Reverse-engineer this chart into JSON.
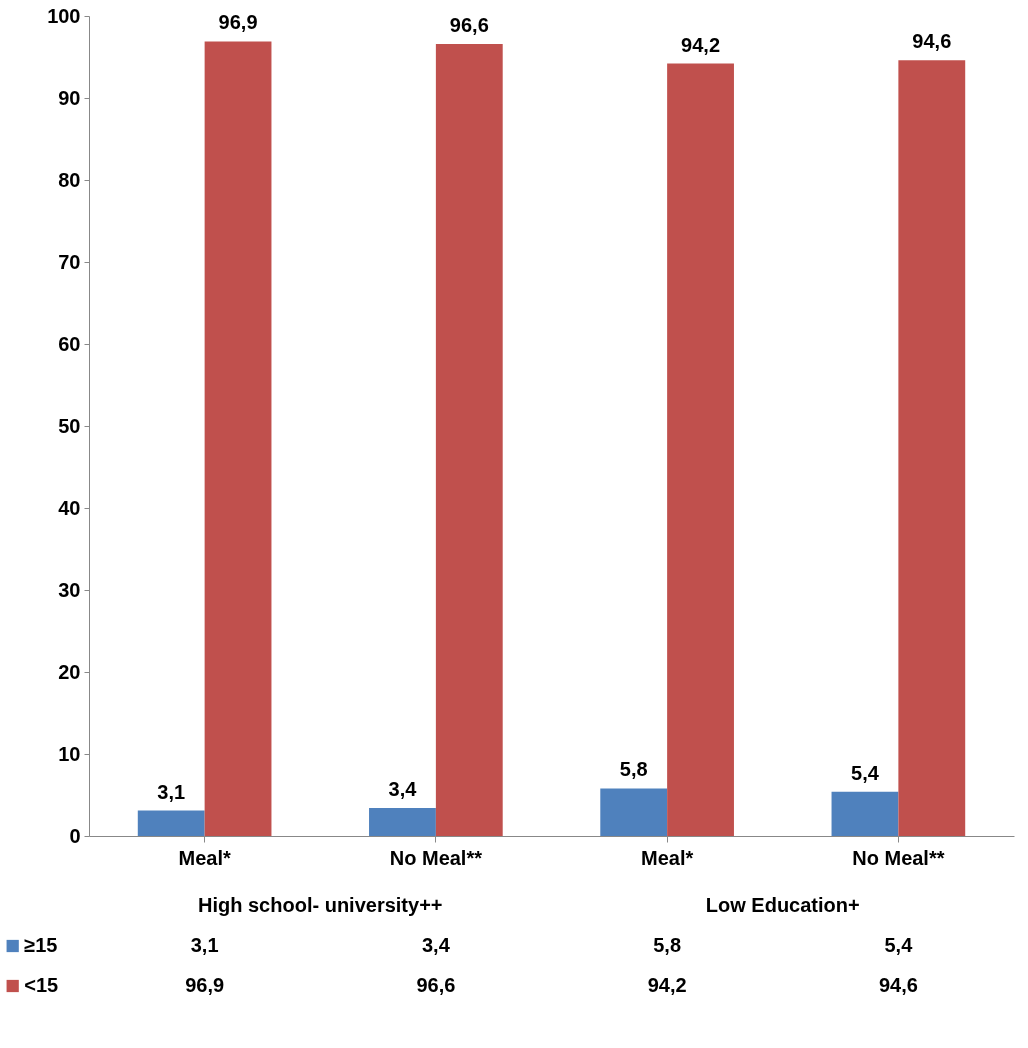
{
  "chart_data": {
    "type": "bar",
    "categories": [
      "Meal*",
      "No Meal**",
      "Meal*",
      "No Meal**"
    ],
    "annotations": [
      "High school- university++",
      "Low Education+"
    ],
    "series": [
      {
        "name": "≥15",
        "color": "#4f81bd",
        "values": [
          3.1,
          3.4,
          5.8,
          5.4
        ],
        "value_labels": [
          "3,1",
          "3,4",
          "5,8",
          "5,4"
        ]
      },
      {
        "name": "<15",
        "color": "#c0504d",
        "values": [
          96.9,
          96.6,
          94.2,
          94.6
        ],
        "value_labels": [
          "96,9",
          "96,6",
          "94,2",
          "94,6"
        ]
      }
    ],
    "ylim": [
      0,
      100
    ],
    "yticks": [
      0,
      10,
      20,
      30,
      40,
      50,
      60,
      70,
      80,
      90,
      100
    ],
    "grid": false,
    "legend": "bottom"
  }
}
